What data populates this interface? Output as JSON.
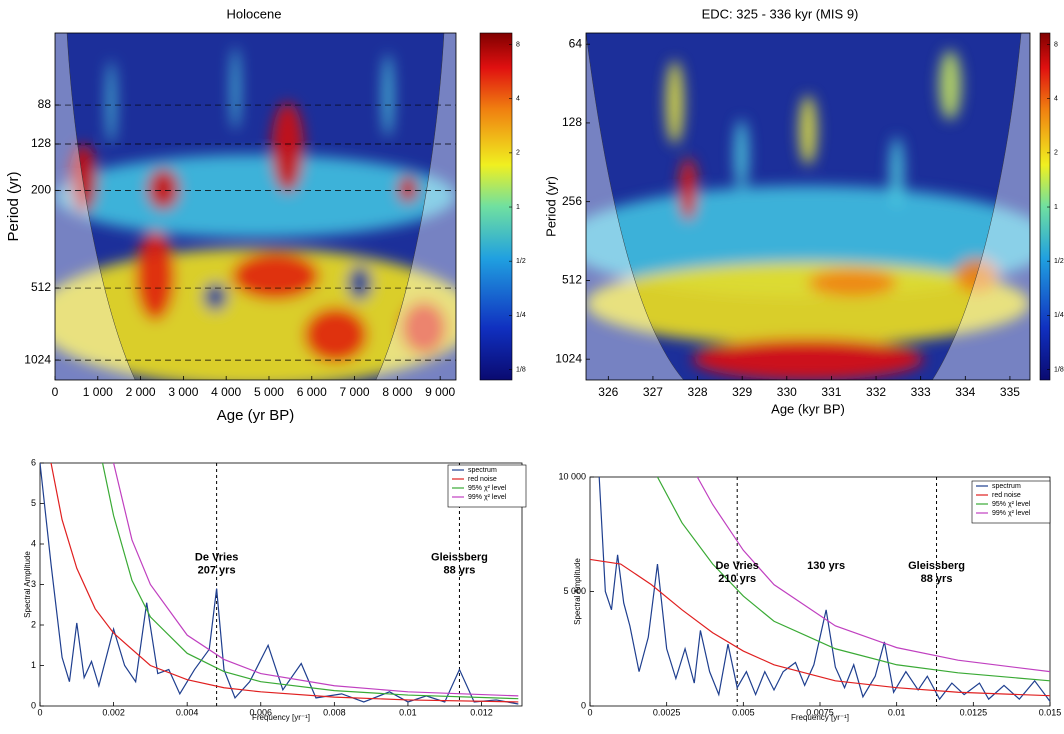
{
  "chart_data": [
    {
      "type": "wavelet",
      "title": "Holocene",
      "xlabel": "Age (yr BP)",
      "ylabel": "Period (yr)",
      "xlim": [
        0,
        9370
      ],
      "xticks": [
        0,
        {
          "value": 1000,
          "label": "1 000"
        },
        {
          "value": 2000,
          "label": "2 000"
        },
        {
          "value": 3000,
          "label": "3 000"
        },
        {
          "value": 4000,
          "label": "4 000"
        },
        {
          "value": 5000,
          "label": "5 000"
        },
        {
          "value": 6000,
          "label": "6 000"
        },
        {
          "value": 7000,
          "label": "7 000"
        },
        {
          "value": 8000,
          "label": "8 000"
        },
        {
          "value": 9000,
          "label": "9 000"
        }
      ],
      "ylim": [
        44,
        1240
      ],
      "yticks": [
        88,
        128,
        200,
        512,
        1024
      ],
      "log_y": true,
      "y_inverted": true,
      "grid": true,
      "colorbar": {
        "lim": [
          0.115,
          8.7
        ],
        "log": true,
        "ticks": [
          8,
          4,
          2,
          1,
          {
            "value": 0.5,
            "label": "1/2"
          },
          {
            "value": 0.25,
            "label": "1/4"
          },
          {
            "value": 0.125,
            "label": "1/8"
          }
        ]
      }
    },
    {
      "type": "wavelet",
      "title": "EDC: 325 - 336 kyr (MIS 9)",
      "xlabel": "Age (kyr BP)",
      "ylabel": "Period (yr)",
      "xlim": [
        325.5,
        335.45
      ],
      "xticks": [
        326,
        327,
        328,
        329,
        330,
        331,
        332,
        333,
        334,
        335
      ],
      "ylim": [
        58,
        1230
      ],
      "yticks": [
        64,
        128,
        256,
        512,
        1024
      ],
      "log_y": true,
      "y_inverted": true,
      "grid": false,
      "colorbar": {
        "lim": [
          0.115,
          8.7
        ],
        "log": true,
        "ticks": [
          8,
          4,
          2,
          1,
          {
            "value": 0.5,
            "label": "1/2"
          },
          {
            "value": 0.25,
            "label": "1/4"
          },
          {
            "value": 0.125,
            "label": "1/8"
          }
        ]
      }
    },
    {
      "type": "line",
      "xlabel": "Frequency [yr⁻¹]",
      "ylabel": "Spectral Amplitude",
      "xlim": [
        0,
        0.0131
      ],
      "xticks": [
        0,
        0.002,
        0.004,
        0.006,
        0.008,
        0.01,
        0.012
      ],
      "ylim": [
        0,
        6
      ],
      "yticks": [
        0,
        1,
        2,
        3,
        4,
        5,
        6
      ],
      "series": [
        {
          "name": "spectrum",
          "color": "#1f3f8f",
          "x": [
            0,
            0.0003,
            0.0006,
            0.0008,
            0.001,
            0.0012,
            0.0014,
            0.0016,
            0.002,
            0.0023,
            0.0026,
            0.0029,
            0.0032,
            0.0035,
            0.0038,
            0.0042,
            0.0046,
            0.0048,
            0.005,
            0.0053,
            0.0057,
            0.0062,
            0.0066,
            0.0071,
            0.0075,
            0.0082,
            0.0088,
            0.0095,
            0.01,
            0.0105,
            0.011,
            0.0114,
            0.0118,
            0.0124,
            0.013
          ],
          "values": [
            6,
            3.5,
            1.2,
            0.6,
            2.05,
            0.7,
            1.1,
            0.5,
            1.9,
            1.0,
            0.6,
            2.55,
            0.8,
            0.9,
            0.3,
            0.9,
            1.4,
            2.9,
            0.9,
            0.2,
            0.6,
            1.5,
            0.4,
            1.05,
            0.2,
            0.3,
            0.1,
            0.35,
            0.1,
            0.25,
            0.1,
            0.9,
            0.1,
            0.15,
            0.05
          ]
        },
        {
          "name": "red noise",
          "color": "#e02020",
          "x": [
            0.0003,
            0.0006,
            0.001,
            0.0015,
            0.002,
            0.003,
            0.004,
            0.005,
            0.006,
            0.008,
            0.01,
            0.013
          ],
          "values": [
            6,
            4.6,
            3.4,
            2.4,
            1.8,
            1.0,
            0.65,
            0.45,
            0.35,
            0.22,
            0.15,
            0.1
          ]
        },
        {
          "name": "95% χ² level",
          "color": "#3aaa35",
          "x": [
            0.0017,
            0.002,
            0.0025,
            0.003,
            0.004,
            0.005,
            0.006,
            0.008,
            0.01,
            0.013
          ],
          "values": [
            6,
            4.7,
            3.1,
            2.2,
            1.3,
            0.85,
            0.6,
            0.38,
            0.27,
            0.18
          ]
        },
        {
          "name": "99% χ² level",
          "color": "#c040c0",
          "x": [
            0.002,
            0.0025,
            0.003,
            0.004,
            0.005,
            0.006,
            0.008,
            0.01,
            0.013
          ],
          "values": [
            6,
            4.1,
            3.0,
            1.75,
            1.15,
            0.8,
            0.5,
            0.35,
            0.25
          ]
        }
      ],
      "vlines": [
        0.0048,
        0.0114
      ],
      "annotations": [
        {
          "x": 0.0048,
          "lines": [
            "De Vries",
            "207 yrs"
          ]
        },
        {
          "x": 0.0114,
          "lines": [
            "Gleissberg",
            "88 yrs"
          ]
        }
      ]
    },
    {
      "type": "line",
      "xlabel": "Frequency [yr⁻¹]",
      "ylabel": "Spectral Amplitude",
      "xlim": [
        0,
        0.015
      ],
      "xticks": [
        0,
        0.0025,
        0.005,
        0.0075,
        0.01,
        0.0125,
        0.015
      ],
      "ylim": [
        0,
        10000
      ],
      "yticks": [
        0,
        {
          "value": 5000,
          "label": "5 000"
        },
        {
          "value": 10000,
          "label": "10 000"
        }
      ],
      "series": [
        {
          "name": "spectrum",
          "color": "#1f3f8f",
          "x": [
            0.0003,
            0.0005,
            0.0007,
            0.0009,
            0.0011,
            0.0013,
            0.0016,
            0.0019,
            0.0022,
            0.0025,
            0.0028,
            0.0031,
            0.0034,
            0.0036,
            0.0039,
            0.0042,
            0.0045,
            0.0048,
            0.0051,
            0.0054,
            0.0057,
            0.006,
            0.0063,
            0.0067,
            0.007,
            0.0073,
            0.0077,
            0.008,
            0.0083,
            0.0086,
            0.0089,
            0.0093,
            0.0096,
            0.0099,
            0.0103,
            0.0107,
            0.011,
            0.0114,
            0.0118,
            0.0122,
            0.0127,
            0.013,
            0.0135,
            0.014,
            0.0145,
            0.015
          ],
          "values": [
            10000,
            5000,
            4200,
            6600,
            4500,
            3500,
            1500,
            3000,
            6200,
            2500,
            1200,
            2500,
            1000,
            3300,
            1500,
            500,
            2700,
            800,
            1500,
            500,
            1500,
            700,
            1500,
            1900,
            900,
            1800,
            4200,
            1700,
            800,
            1800,
            400,
            1300,
            2800,
            600,
            1500,
            700,
            1300,
            300,
            1000,
            500,
            1000,
            300,
            900,
            300,
            1100,
            200
          ]
        },
        {
          "name": "red noise",
          "color": "#e02020",
          "x": [
            0,
            0.001,
            0.002,
            0.003,
            0.004,
            0.005,
            0.006,
            0.008,
            0.01,
            0.012,
            0.015
          ],
          "values": [
            6400,
            6200,
            5300,
            4200,
            3200,
            2400,
            1800,
            1100,
            800,
            600,
            450
          ]
        },
        {
          "name": "95% χ² level",
          "color": "#3aaa35",
          "x": [
            0.0022,
            0.003,
            0.004,
            0.005,
            0.006,
            0.008,
            0.01,
            0.012,
            0.015
          ],
          "values": [
            10000,
            8000,
            6200,
            4800,
            3700,
            2500,
            1800,
            1450,
            1100
          ]
        },
        {
          "name": "99% χ² level",
          "color": "#c040c0",
          "x": [
            0.0035,
            0.004,
            0.005,
            0.006,
            0.008,
            0.01,
            0.012,
            0.015
          ],
          "values": [
            10000,
            8800,
            6800,
            5300,
            3500,
            2550,
            2000,
            1500
          ]
        }
      ],
      "vlines": [
        0.0048,
        0.0113
      ],
      "annotations": [
        {
          "x": 0.0048,
          "lines": [
            "De Vries",
            "210 yrs"
          ]
        },
        {
          "x": 0.0077,
          "lines": [
            "130 yrs"
          ]
        },
        {
          "x": 0.0113,
          "lines": [
            "Gleissberg",
            "88 yrs"
          ]
        }
      ]
    }
  ]
}
